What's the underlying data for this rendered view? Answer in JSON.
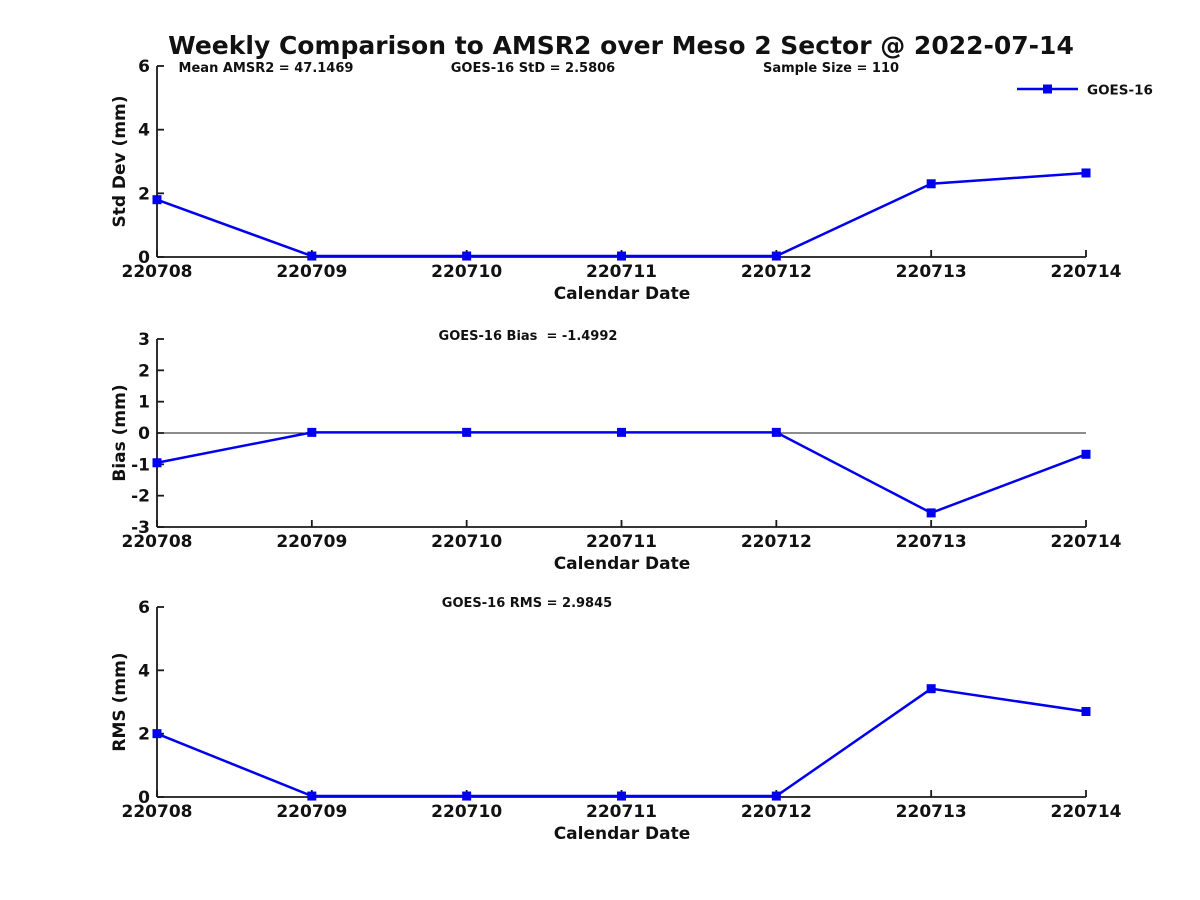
{
  "title": "Weekly Comparison to AMSR2 over Meso 2 Sector @ 2022-07-14",
  "legend": {
    "label": "GOES-16",
    "marker": "square",
    "position": "top-right"
  },
  "colors": {
    "series": "#0000EE",
    "axis": "#1a1a1a",
    "text": "#111111",
    "background": "#ffffff"
  },
  "chart_data": [
    {
      "type": "line",
      "name": "std-dev-panel",
      "annotations": [
        "Mean AMSR2 = 47.1469",
        "GOES-16 StD = 2.5806",
        "Sample Size = 110"
      ],
      "xlabel": "Calendar Date",
      "ylabel": "Std Dev (mm)",
      "categories": [
        "220708",
        "220709",
        "220710",
        "220711",
        "220712",
        "220713",
        "220714"
      ],
      "series": [
        {
          "name": "GOES-16",
          "values": [
            1.8,
            0.03,
            0.03,
            0.03,
            0.03,
            2.3,
            2.64
          ]
        }
      ],
      "ylim": [
        0,
        6
      ],
      "yticks": [
        0,
        2,
        4,
        6
      ],
      "grid": false,
      "zero_line": false
    },
    {
      "type": "line",
      "name": "bias-panel",
      "annotations": [
        "GOES-16 Bias  = -1.4992"
      ],
      "xlabel": "Calendar Date",
      "ylabel": "Bias (mm)",
      "categories": [
        "220708",
        "220709",
        "220710",
        "220711",
        "220712",
        "220713",
        "220714"
      ],
      "series": [
        {
          "name": "GOES-16",
          "values": [
            -0.95,
            0.02,
            0.02,
            0.02,
            0.02,
            -2.55,
            -0.68
          ]
        }
      ],
      "ylim": [
        -3,
        3
      ],
      "yticks": [
        -3,
        -2,
        -1,
        0,
        1,
        2,
        3
      ],
      "grid": false,
      "zero_line": true
    },
    {
      "type": "line",
      "name": "rms-panel",
      "annotations": [
        "GOES-16 RMS = 2.9845"
      ],
      "xlabel": "Calendar Date",
      "ylabel": "RMS (mm)",
      "categories": [
        "220708",
        "220709",
        "220710",
        "220711",
        "220712",
        "220713",
        "220714"
      ],
      "series": [
        {
          "name": "GOES-16",
          "values": [
            2.0,
            0.03,
            0.03,
            0.03,
            0.03,
            3.42,
            2.7
          ]
        }
      ],
      "ylim": [
        0,
        6
      ],
      "yticks": [
        0,
        2,
        4,
        6
      ],
      "grid": false,
      "zero_line": false
    }
  ]
}
